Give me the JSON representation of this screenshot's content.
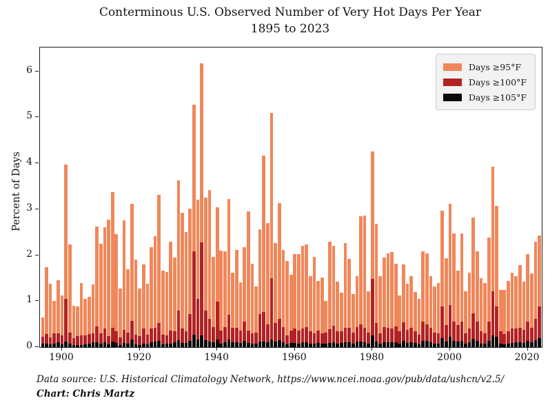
{
  "title": {
    "line1": "Conterminous U.S. Observed Number of Very Hot Days Per Year",
    "line2": "1895 to 2023"
  },
  "footer": {
    "source": "Data source: U.S. Historical Climatology Network, https://www.ncei.noaa.gov/pub/data/ushcn/v2.5/",
    "credit": "Chart: Chris Martz"
  },
  "colors": {
    "days_ge_95": "#F0875A",
    "days_ge_100": "#B22222",
    "days_ge_105": "#0a0a0a",
    "legend_bg": "#f2f2f2",
    "axis": "#1a1a1a"
  },
  "chart_data": {
    "type": "bar",
    "bar_style": "overlaid",
    "title": "Conterminous U.S. Observed Number of Very Hot Days Per Year 1895 to 2023",
    "xlabel": "",
    "ylabel": "Percent of Days",
    "grid": false,
    "legend_position": "upper right",
    "ylim": [
      0,
      6.52
    ],
    "yticks": [
      0,
      1,
      2,
      3,
      4,
      5,
      6
    ],
    "xticks": [
      1900,
      1920,
      1940,
      1960,
      1980,
      2000,
      2020
    ],
    "x_start_year": 1895,
    "x_end_year": 2023,
    "series": [
      {
        "name": "Days ≥95°F",
        "color_key": "days_ge_95",
        "values": [
          0.65,
          1.74,
          1.38,
          1.0,
          1.45,
          1.12,
          3.97,
          2.24,
          0.9,
          0.89,
          1.4,
          1.05,
          1.1,
          1.37,
          2.62,
          2.25,
          2.61,
          2.77,
          3.38,
          2.46,
          1.28,
          2.76,
          1.7,
          3.12,
          1.91,
          1.28,
          1.8,
          1.38,
          2.17,
          2.41,
          3.31,
          1.67,
          1.63,
          2.29,
          1.95,
          3.62,
          2.92,
          2.51,
          3.02,
          5.28,
          3.21,
          6.17,
          3.26,
          3.42,
          1.97,
          3.05,
          2.1,
          2.09,
          3.23,
          1.62,
          2.12,
          1.41,
          2.17,
          2.95,
          1.82,
          1.32,
          2.57,
          4.16,
          2.7,
          5.1,
          2.26,
          3.13,
          2.11,
          1.87,
          1.57,
          2.03,
          2.02,
          2.2,
          2.24,
          1.54,
          1.97,
          1.44,
          1.52,
          1.0,
          2.29,
          2.2,
          1.43,
          1.19,
          2.26,
          1.92,
          1.15,
          1.55,
          2.85,
          2.87,
          1.22,
          4.26,
          2.68,
          1.54,
          1.95,
          2.04,
          2.07,
          1.82,
          1.13,
          1.8,
          1.38,
          1.55,
          1.2,
          1.05,
          2.08,
          2.04,
          1.54,
          1.32,
          1.39,
          2.97,
          1.94,
          3.12,
          2.47,
          1.67,
          2.47,
          1.22,
          1.62,
          2.82,
          2.09,
          1.5,
          1.4,
          2.38,
          3.92,
          3.07,
          1.24,
          1.24,
          1.44,
          1.62,
          1.54,
          1.79,
          1.42,
          2.03,
          1.61,
          2.3,
          2.43
        ]
      },
      {
        "name": "Days ≥100°F",
        "color_key": "days_ge_100",
        "values": [
          0.23,
          0.29,
          0.21,
          0.3,
          0.3,
          0.25,
          1.05,
          0.32,
          0.2,
          0.24,
          0.26,
          0.26,
          0.28,
          0.3,
          0.45,
          0.3,
          0.4,
          0.24,
          0.42,
          0.35,
          0.21,
          0.37,
          0.31,
          0.57,
          0.27,
          0.24,
          0.4,
          0.27,
          0.4,
          0.42,
          0.52,
          0.27,
          0.25,
          0.36,
          0.35,
          0.8,
          0.41,
          0.35,
          0.72,
          2.08,
          1.05,
          2.28,
          0.8,
          0.62,
          0.44,
          0.99,
          0.36,
          0.44,
          0.7,
          0.42,
          0.42,
          0.36,
          0.55,
          0.36,
          0.3,
          0.31,
          0.72,
          0.76,
          0.5,
          1.5,
          0.52,
          0.62,
          0.44,
          0.26,
          0.36,
          0.41,
          0.36,
          0.41,
          0.44,
          0.34,
          0.3,
          0.36,
          0.3,
          0.31,
          0.39,
          0.47,
          0.35,
          0.34,
          0.42,
          0.42,
          0.32,
          0.44,
          0.49,
          0.42,
          0.32,
          1.49,
          0.52,
          0.3,
          0.43,
          0.42,
          0.4,
          0.45,
          0.35,
          0.54,
          0.37,
          0.42,
          0.35,
          0.27,
          0.55,
          0.5,
          0.42,
          0.32,
          0.3,
          0.88,
          0.48,
          0.92,
          0.55,
          0.48,
          0.55,
          0.3,
          0.4,
          0.73,
          0.55,
          0.35,
          0.3,
          0.55,
          1.22,
          0.88,
          0.35,
          0.28,
          0.35,
          0.4,
          0.4,
          0.42,
          0.38,
          0.55,
          0.42,
          0.62,
          0.88
        ]
      },
      {
        "name": "Days ≥105°F",
        "color_key": "days_ge_105",
        "values": [
          0.08,
          0.07,
          0.06,
          0.08,
          0.1,
          0.06,
          0.12,
          0.08,
          0.05,
          0.05,
          0.05,
          0.06,
          0.07,
          0.1,
          0.1,
          0.08,
          0.1,
          0.06,
          0.12,
          0.09,
          0.05,
          0.09,
          0.08,
          0.17,
          0.06,
          0.05,
          0.08,
          0.06,
          0.1,
          0.12,
          0.13,
          0.06,
          0.07,
          0.08,
          0.1,
          0.15,
          0.09,
          0.09,
          0.14,
          0.27,
          0.17,
          0.26,
          0.15,
          0.12,
          0.11,
          0.17,
          0.08,
          0.1,
          0.16,
          0.1,
          0.1,
          0.09,
          0.13,
          0.09,
          0.07,
          0.08,
          0.12,
          0.12,
          0.11,
          0.17,
          0.12,
          0.15,
          0.1,
          0.06,
          0.09,
          0.09,
          0.08,
          0.1,
          0.11,
          0.08,
          0.07,
          0.09,
          0.07,
          0.08,
          0.09,
          0.11,
          0.08,
          0.09,
          0.1,
          0.11,
          0.08,
          0.12,
          0.12,
          0.11,
          0.08,
          0.25,
          0.12,
          0.07,
          0.1,
          0.1,
          0.1,
          0.11,
          0.08,
          0.13,
          0.09,
          0.1,
          0.09,
          0.06,
          0.13,
          0.13,
          0.11,
          0.08,
          0.07,
          0.2,
          0.12,
          0.22,
          0.13,
          0.12,
          0.13,
          0.07,
          0.1,
          0.18,
          0.13,
          0.08,
          0.07,
          0.13,
          0.25,
          0.22,
          0.08,
          0.06,
          0.08,
          0.09,
          0.1,
          0.1,
          0.09,
          0.14,
          0.11,
          0.15,
          0.2
        ]
      }
    ]
  }
}
